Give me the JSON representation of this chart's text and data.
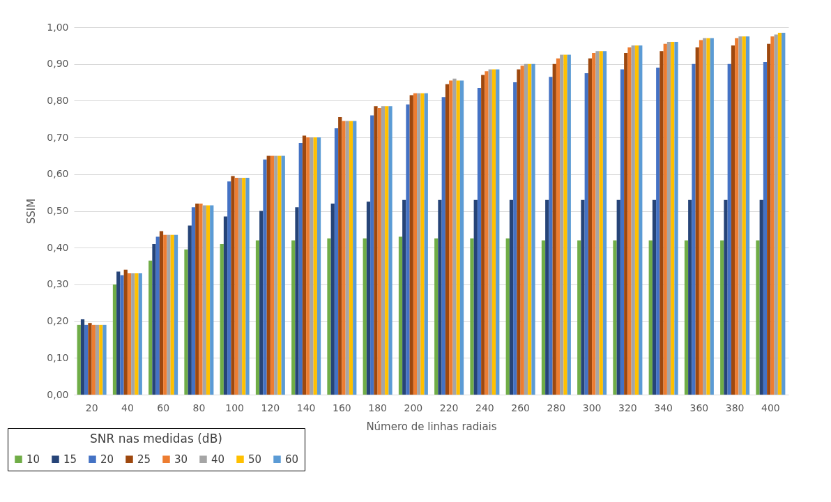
{
  "chart_data": {
    "type": "bar",
    "xlabel": "Número de linhas radiais",
    "ylabel": "SSIM",
    "legend_title": "SNR nas medidas (dB)",
    "categories": [
      "20",
      "40",
      "60",
      "80",
      "100",
      "120",
      "140",
      "160",
      "180",
      "200",
      "220",
      "240",
      "260",
      "280",
      "300",
      "320",
      "340",
      "360",
      "380",
      "400"
    ],
    "series": [
      {
        "name": "10",
        "color": "#70ad47",
        "values": [
          0.19,
          0.3,
          0.365,
          0.395,
          0.41,
          0.42,
          0.42,
          0.425,
          0.425,
          0.43,
          0.425,
          0.425,
          0.425,
          0.42,
          0.42,
          0.42,
          0.42,
          0.42,
          0.42,
          0.42
        ]
      },
      {
        "name": "15",
        "color": "#264478",
        "values": [
          0.205,
          0.335,
          0.41,
          0.46,
          0.485,
          0.5,
          0.51,
          0.52,
          0.525,
          0.53,
          0.53,
          0.53,
          0.53,
          0.53,
          0.53,
          0.53,
          0.53,
          0.53,
          0.53,
          0.53
        ]
      },
      {
        "name": "20",
        "color": "#4472c4",
        "values": [
          0.19,
          0.325,
          0.43,
          0.51,
          0.58,
          0.64,
          0.685,
          0.725,
          0.76,
          0.79,
          0.81,
          0.835,
          0.85,
          0.865,
          0.875,
          0.885,
          0.89,
          0.9,
          0.9,
          0.905
        ]
      },
      {
        "name": "25",
        "color": "#9e480e",
        "values": [
          0.195,
          0.34,
          0.445,
          0.52,
          0.595,
          0.65,
          0.705,
          0.755,
          0.785,
          0.815,
          0.845,
          0.87,
          0.885,
          0.9,
          0.915,
          0.93,
          0.935,
          0.945,
          0.95,
          0.955
        ]
      },
      {
        "name": "30",
        "color": "#ed7d31",
        "values": [
          0.19,
          0.33,
          0.435,
          0.52,
          0.59,
          0.65,
          0.7,
          0.745,
          0.78,
          0.82,
          0.855,
          0.88,
          0.895,
          0.915,
          0.93,
          0.945,
          0.955,
          0.965,
          0.97,
          0.975
        ]
      },
      {
        "name": "40",
        "color": "#a5a5a5",
        "values": [
          0.19,
          0.33,
          0.435,
          0.515,
          0.59,
          0.65,
          0.7,
          0.745,
          0.785,
          0.82,
          0.86,
          0.885,
          0.9,
          0.925,
          0.935,
          0.95,
          0.96,
          0.97,
          0.975,
          0.98
        ]
      },
      {
        "name": "50",
        "color": "#ffc000",
        "values": [
          0.19,
          0.33,
          0.435,
          0.515,
          0.59,
          0.65,
          0.7,
          0.745,
          0.785,
          0.82,
          0.855,
          0.885,
          0.9,
          0.925,
          0.935,
          0.95,
          0.96,
          0.97,
          0.975,
          0.985
        ]
      },
      {
        "name": "60",
        "color": "#5b9bd5",
        "values": [
          0.19,
          0.33,
          0.435,
          0.515,
          0.59,
          0.65,
          0.7,
          0.745,
          0.785,
          0.82,
          0.855,
          0.885,
          0.9,
          0.925,
          0.935,
          0.95,
          0.96,
          0.97,
          0.975,
          0.985
        ]
      }
    ],
    "ylim": [
      0,
      1
    ],
    "yticks": [
      {
        "value": 0,
        "label": "0,00"
      },
      {
        "value": 0.1,
        "label": "0,10"
      },
      {
        "value": 0.2,
        "label": "0,20"
      },
      {
        "value": 0.3,
        "label": "0,30"
      },
      {
        "value": 0.4,
        "label": "0,40"
      },
      {
        "value": 0.5,
        "label": "0,50"
      },
      {
        "value": 0.6,
        "label": "0,60"
      },
      {
        "value": 0.7,
        "label": "0,70"
      },
      {
        "value": 0.8,
        "label": "0,80"
      },
      {
        "value": 0.9,
        "label": "0,90"
      },
      {
        "value": 1,
        "label": "1,00"
      }
    ],
    "grid": "y",
    "legend": "bottom left"
  }
}
